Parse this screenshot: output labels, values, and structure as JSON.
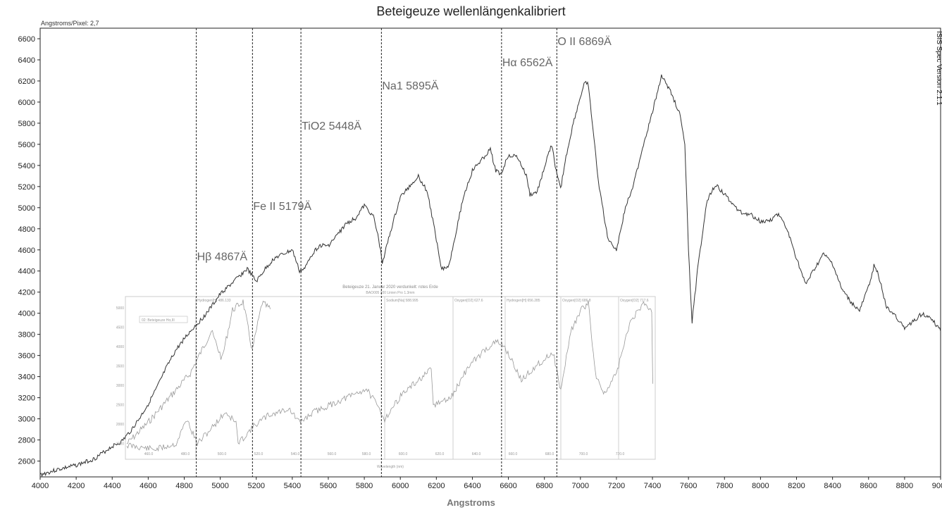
{
  "chart_data": {
    "type": "line",
    "title": "Beteigeuze wellenlängenkalibriert",
    "pixel_scale_label": "Angstroms/Pixel: 2,7",
    "side_label": "ISIS Spec Version 2.1.1",
    "xlabel": "Angstroms",
    "ylabel": "",
    "xlim": [
      4000,
      9000
    ],
    "ylim": [
      2450,
      6700
    ],
    "xticks": [
      4000,
      4200,
      4400,
      4600,
      4800,
      5000,
      5200,
      5400,
      5600,
      5800,
      6000,
      6200,
      6400,
      6600,
      6800,
      7000,
      7200,
      7400,
      7600,
      7800,
      8000,
      8200,
      8400,
      8600,
      8800,
      9000
    ],
    "yticks": [
      2600,
      2800,
      3000,
      3200,
      3400,
      3600,
      3800,
      4000,
      4200,
      4400,
      4600,
      4800,
      5000,
      5200,
      5400,
      5600,
      5800,
      6000,
      6200,
      6400,
      6600
    ],
    "grid": false,
    "spectral_lines": [
      {
        "label": "Hβ 4867Ä",
        "x": 4867,
        "label_y": 4500
      },
      {
        "label": "Fe II 5179Ä",
        "x": 5179,
        "label_y": 4980
      },
      {
        "label": "TiO2 5448Ä",
        "x": 5448,
        "label_y": 5740
      },
      {
        "label": "Na1 5895Ä",
        "x": 5895,
        "label_y": 6120
      },
      {
        "label": "Hα 6562Ä",
        "x": 6562,
        "label_y": 6340
      },
      {
        "label": "O II 6869Ä",
        "x": 6869,
        "label_y": 6540
      }
    ],
    "series": [
      {
        "color": "#333333",
        "x": [
          4000,
          4100,
          4200,
          4300,
          4400,
          4450,
          4500,
          4550,
          4600,
          4650,
          4700,
          4750,
          4800,
          4850,
          4900,
          4950,
          5000,
          5050,
          5100,
          5150,
          5200,
          5250,
          5300,
          5350,
          5400,
          5440,
          5470,
          5500,
          5550,
          5600,
          5650,
          5700,
          5750,
          5800,
          5850,
          5880,
          5900,
          5950,
          6000,
          6050,
          6100,
          6150,
          6200,
          6230,
          6270,
          6300,
          6350,
          6400,
          6450,
          6500,
          6530,
          6560,
          6600,
          6650,
          6700,
          6720,
          6760,
          6800,
          6840,
          6870,
          6890,
          6920,
          6960,
          7000,
          7020,
          7040,
          7060,
          7100,
          7150,
          7200,
          7250,
          7300,
          7350,
          7400,
          7420,
          7450,
          7500,
          7550,
          7580,
          7600,
          7620,
          7650,
          7700,
          7750,
          7800,
          7850,
          7900,
          7950,
          8000,
          8050,
          8100,
          8150,
          8200,
          8250,
          8300,
          8350,
          8400,
          8450,
          8500,
          8550,
          8600,
          8630,
          8650,
          8700,
          8750,
          8800,
          8850,
          8900,
          8950,
          9000
        ],
        "values": [
          2470,
          2520,
          2560,
          2620,
          2740,
          2780,
          2880,
          3000,
          3140,
          3300,
          3480,
          3640,
          3760,
          3860,
          3950,
          4060,
          4180,
          4260,
          4340,
          4420,
          4300,
          4420,
          4520,
          4560,
          4600,
          4400,
          4420,
          4540,
          4640,
          4640,
          4740,
          4850,
          4900,
          5020,
          4920,
          4700,
          4480,
          4800,
          5100,
          5200,
          5300,
          5150,
          4700,
          4420,
          4450,
          4700,
          5100,
          5350,
          5450,
          5550,
          5350,
          5320,
          5500,
          5480,
          5300,
          5120,
          5150,
          5380,
          5600,
          5300,
          5180,
          5480,
          5800,
          6050,
          6160,
          6200,
          5900,
          5250,
          4720,
          4600,
          5000,
          5250,
          5600,
          5900,
          6050,
          6250,
          6100,
          5900,
          5600,
          4600,
          3920,
          4400,
          5050,
          5220,
          5130,
          5020,
          4950,
          4930,
          4870,
          4880,
          4940,
          4780,
          4520,
          4270,
          4420,
          4560,
          4470,
          4230,
          4110,
          4020,
          4250,
          4450,
          4400,
          4050,
          3980,
          3850,
          3930,
          4000,
          3950,
          3830
        ]
      }
    ],
    "inset": {
      "title": "Beteigeuze 21. Januar 2020 verdunkelt: rotes Erde",
      "subtitle": "BAO005 200 Linien Pro 1.3mm",
      "legend": "02: Beteigeuze Hα,III",
      "xlabel": "Wavelength (nm)",
      "xticks": [
        "460.0",
        "480.0",
        "500.0",
        "520.0",
        "540.0",
        "560.0",
        "580.0",
        "600.0",
        "620.0",
        "640.0",
        "660.0",
        "680.0",
        "700.0",
        "720.0"
      ],
      "yticks": [
        "5000",
        "4500",
        "4000",
        "3500",
        "3000",
        "2500",
        "2000",
        "1500"
      ],
      "line_labels": [
        "Hydrogen[H] 486.133",
        "Sodium[Na] 588.995",
        "Oxygen[O2] 627.6",
        "Hydrogen[H] 656.285",
        "Oxygen[O2] 686.8",
        "Oxygen[O2] 717.6"
      ]
    }
  }
}
